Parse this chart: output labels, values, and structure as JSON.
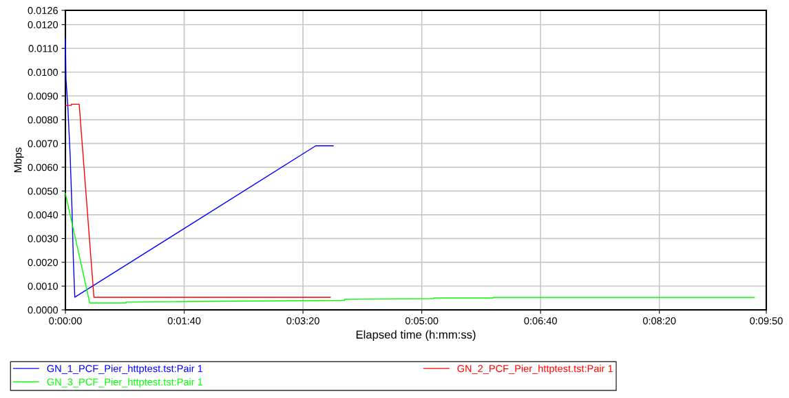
{
  "chart_data": {
    "type": "line",
    "xlabel": "Elapsed time (h:mm:ss)",
    "ylabel": "Mbps",
    "xlim": [
      0,
      590
    ],
    "xticks": [
      {
        "value": 0,
        "label": "0:00:00"
      },
      {
        "value": 100,
        "label": "0:01:40"
      },
      {
        "value": 200,
        "label": "0:03:20"
      },
      {
        "value": 300,
        "label": "0:05:00"
      },
      {
        "value": 400,
        "label": "0:06:40"
      },
      {
        "value": 500,
        "label": "0:08:20"
      },
      {
        "value": 590,
        "label": "0:09:50"
      }
    ],
    "ylim": [
      0,
      0.0126
    ],
    "yticks": [
      {
        "value": 0,
        "label": "0.0000"
      },
      {
        "value": 0.001,
        "label": "0.0010"
      },
      {
        "value": 0.002,
        "label": "0.0020"
      },
      {
        "value": 0.003,
        "label": "0.0030"
      },
      {
        "value": 0.004,
        "label": "0.0040"
      },
      {
        "value": 0.005,
        "label": "0.0050"
      },
      {
        "value": 0.006,
        "label": "0.0060"
      },
      {
        "value": 0.007,
        "label": "0.0070"
      },
      {
        "value": 0.008,
        "label": "0.0080"
      },
      {
        "value": 0.009,
        "label": "0.0090"
      },
      {
        "value": 0.01,
        "label": "0.0100"
      },
      {
        "value": 0.011,
        "label": "0.0110"
      },
      {
        "value": 0.012,
        "label": "0.0120"
      },
      {
        "value": 0.0126,
        "label": "0.0126"
      }
    ],
    "grid": true,
    "legend": "bottom",
    "line_style": "solid",
    "series": [
      {
        "name": "GN_1_PCF_Pier_httptest.tst:Pair 1",
        "color": "#0000ff",
        "x": [
          0,
          0.5,
          2,
          4,
          5.5,
          6.7,
          7.9,
          210.7,
          225.5
        ],
        "values": [
          0.0114,
          0.0097,
          0.0086,
          0.0065,
          0.0043,
          0.0021,
          0.00053,
          0.0069,
          0.0069
        ]
      },
      {
        "name": "GN_2_PCF_Pier_httptest.tst:Pair 1",
        "color": "#ff0000",
        "x": [
          0,
          5,
          5,
          11.6,
          24,
          223
        ],
        "values": [
          0.0086,
          0.0086,
          0.00865,
          0.00865,
          0.00053,
          0.00053
        ]
      },
      {
        "name": "GN_3_PCF_Pier_httptest.tst:Pair 1",
        "color": "#00ff00",
        "x": [
          0,
          20.5,
          51,
          51,
          235,
          235,
          310,
          310,
          360,
          360,
          580
        ],
        "values": [
          0.0049,
          0.00029,
          0.00029,
          0.00033,
          0.0004,
          0.00045,
          0.00047,
          0.0005,
          0.0005,
          0.00052,
          0.00052
        ]
      }
    ]
  }
}
